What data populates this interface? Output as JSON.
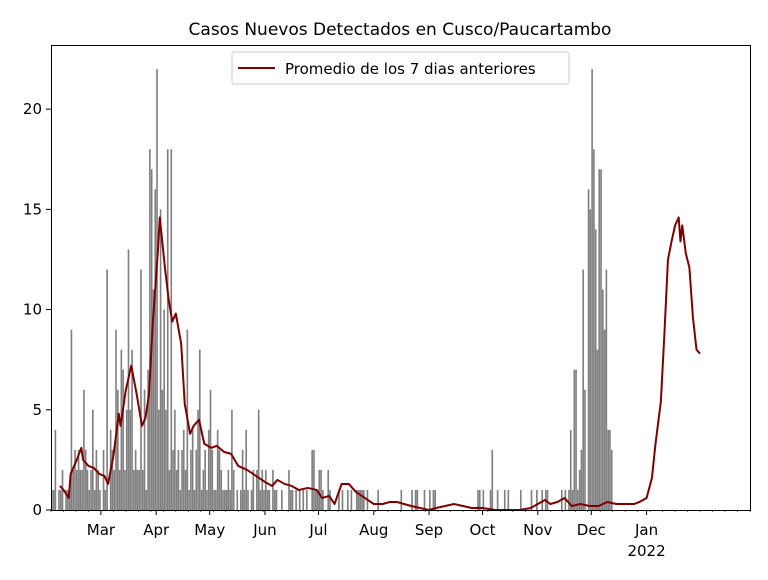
{
  "chart_data": {
    "type": "bar",
    "title": "Casos Nuevos Detectados en Cusco/Paucartambo",
    "xlabel": "",
    "ylabel": "",
    "ylim": [
      0,
      23.2
    ],
    "xlim": [
      "2021-02-01",
      "2022-02-28"
    ],
    "grid": false,
    "legend": {
      "placement": "top-center",
      "entries": [
        {
          "label": "Promedio de los 7 dias anteriores",
          "color": "#800000"
        }
      ]
    },
    "x_ticks": [
      {
        "date": "2021-03-01",
        "label": "Mar"
      },
      {
        "date": "2021-04-01",
        "label": "Apr"
      },
      {
        "date": "2021-05-01",
        "label": "May"
      },
      {
        "date": "2021-06-01",
        "label": "Jun"
      },
      {
        "date": "2021-07-01",
        "label": "Jul"
      },
      {
        "date": "2021-08-01",
        "label": "Aug"
      },
      {
        "date": "2021-09-01",
        "label": "Sep"
      },
      {
        "date": "2021-10-01",
        "label": "Oct"
      },
      {
        "date": "2021-11-01",
        "label": "Nov"
      },
      {
        "date": "2021-12-01",
        "label": "Dec"
      },
      {
        "date": "2022-01-01",
        "label": "Jan",
        "sublabel": "2022"
      }
    ],
    "y_ticks": [
      0,
      5,
      10,
      15,
      20
    ],
    "bar_color": "#808080",
    "line_color": "#800000",
    "daily_cases": {
      "start_date": "2021-02-01",
      "values": [
        1,
        1,
        4,
        0,
        1,
        1,
        2,
        0,
        1,
        1,
        1,
        9,
        2,
        3,
        2,
        3,
        2,
        2,
        6,
        3,
        2,
        1,
        2,
        5,
        1,
        3,
        2,
        1,
        0,
        3,
        1,
        12,
        0,
        4,
        3,
        2,
        9,
        6,
        2,
        8,
        7,
        2,
        5,
        13,
        5,
        8,
        2,
        3,
        2,
        2,
        12,
        2,
        6,
        1,
        7,
        18,
        17,
        11,
        16,
        22,
        5,
        15,
        6,
        10,
        5,
        18,
        2,
        18,
        3,
        5,
        2,
        3,
        1,
        3,
        4,
        2,
        9,
        1,
        3,
        4,
        1,
        3,
        5,
        8,
        1,
        2,
        3,
        1,
        4,
        6,
        3,
        1,
        1,
        4,
        3,
        2,
        1,
        1,
        1,
        2,
        1,
        5,
        2,
        0,
        1,
        0,
        1,
        3,
        1,
        4,
        1,
        0,
        1,
        2,
        0,
        2,
        5,
        1,
        2,
        1,
        2,
        1,
        1,
        0,
        2,
        1,
        1,
        0,
        0,
        1,
        0,
        0,
        0,
        2,
        1,
        1,
        0,
        1,
        0,
        1,
        0,
        1,
        0,
        1,
        0,
        0,
        3,
        3,
        1,
        1,
        2,
        2,
        1,
        0,
        0,
        2,
        1,
        0,
        0,
        0,
        0,
        1,
        0,
        1,
        0,
        0,
        1,
        0,
        1,
        0,
        0,
        1,
        1,
        1,
        1,
        1,
        0,
        1,
        0,
        0,
        0,
        0,
        0,
        1,
        0,
        0,
        0,
        0,
        0,
        0,
        0,
        0,
        0,
        0,
        0,
        0,
        1,
        0,
        0,
        0,
        0,
        0,
        1,
        0,
        1,
        1,
        0,
        0,
        0,
        1,
        0,
        0,
        1,
        0,
        1,
        1,
        0,
        0,
        0,
        0,
        0,
        0,
        0,
        0,
        0,
        0,
        0,
        0,
        0,
        0,
        0,
        0,
        0,
        0,
        0,
        0,
        0,
        0,
        0,
        1,
        1,
        0,
        1,
        0,
        0,
        0,
        1,
        3,
        0,
        0,
        1,
        0,
        0,
        0,
        1,
        0,
        1,
        0,
        0,
        0,
        0,
        0,
        0,
        1,
        0,
        0,
        0,
        0,
        0,
        1,
        0,
        0,
        1,
        0,
        0,
        1,
        0,
        1,
        1,
        0,
        0,
        0,
        0,
        0,
        0,
        0,
        1,
        0,
        1,
        0,
        1,
        4,
        1,
        7,
        7,
        1,
        2,
        3,
        12,
        6,
        0,
        16,
        15,
        22,
        18,
        14,
        8,
        17,
        17,
        11,
        9,
        12,
        4,
        4,
        3
      ]
    },
    "rolling_avg_7d": {
      "points": [
        [
          "2021-02-06",
          1.2
        ],
        [
          "2021-02-08",
          1.0
        ],
        [
          "2021-02-11",
          0.6
        ],
        [
          "2021-02-12",
          1.8
        ],
        [
          "2021-02-15",
          2.4
        ],
        [
          "2021-02-18",
          3.1
        ],
        [
          "2021-02-19",
          2.5
        ],
        [
          "2021-02-22",
          2.2
        ],
        [
          "2021-02-25",
          2.1
        ],
        [
          "2021-02-28",
          1.8
        ],
        [
          "2021-03-03",
          1.7
        ],
        [
          "2021-03-05",
          1.3
        ],
        [
          "2021-03-08",
          2.7
        ],
        [
          "2021-03-11",
          4.8
        ],
        [
          "2021-03-12",
          4.2
        ],
        [
          "2021-03-15",
          6.0
        ],
        [
          "2021-03-18",
          7.2
        ],
        [
          "2021-03-21",
          5.8
        ],
        [
          "2021-03-24",
          4.2
        ],
        [
          "2021-03-26",
          4.6
        ],
        [
          "2021-03-28",
          5.8
        ],
        [
          "2021-03-30",
          9.2
        ],
        [
          "2021-04-02",
          13.0
        ],
        [
          "2021-04-03",
          14.6
        ],
        [
          "2021-04-06",
          12.0
        ],
        [
          "2021-04-08",
          10.5
        ],
        [
          "2021-04-10",
          9.4
        ],
        [
          "2021-04-12",
          9.8
        ],
        [
          "2021-04-15",
          8.3
        ],
        [
          "2021-04-17",
          5.3
        ],
        [
          "2021-04-20",
          3.8
        ],
        [
          "2021-04-22",
          4.2
        ],
        [
          "2021-04-25",
          4.5
        ],
        [
          "2021-04-28",
          3.3
        ],
        [
          "2021-05-02",
          3.1
        ],
        [
          "2021-05-05",
          3.2
        ],
        [
          "2021-05-09",
          2.9
        ],
        [
          "2021-05-13",
          2.8
        ],
        [
          "2021-05-17",
          2.2
        ],
        [
          "2021-05-22",
          2.0
        ],
        [
          "2021-05-27",
          1.7
        ],
        [
          "2021-06-01",
          1.4
        ],
        [
          "2021-06-05",
          1.2
        ],
        [
          "2021-06-08",
          1.5
        ],
        [
          "2021-06-12",
          1.3
        ],
        [
          "2021-06-16",
          1.2
        ],
        [
          "2021-06-20",
          1.0
        ],
        [
          "2021-06-25",
          1.1
        ],
        [
          "2021-06-30",
          1.0
        ],
        [
          "2021-07-03",
          0.6
        ],
        [
          "2021-07-07",
          0.7
        ],
        [
          "2021-07-10",
          0.3
        ],
        [
          "2021-07-14",
          1.3
        ],
        [
          "2021-07-18",
          1.3
        ],
        [
          "2021-07-22",
          0.9
        ],
        [
          "2021-07-27",
          0.6
        ],
        [
          "2021-08-01",
          0.3
        ],
        [
          "2021-08-06",
          0.3
        ],
        [
          "2021-08-10",
          0.4
        ],
        [
          "2021-08-14",
          0.4
        ],
        [
          "2021-08-18",
          0.3
        ],
        [
          "2021-08-22",
          0.2
        ],
        [
          "2021-08-27",
          0.1
        ],
        [
          "2021-09-01",
          0.0
        ],
        [
          "2021-09-05",
          0.1
        ],
        [
          "2021-09-10",
          0.2
        ],
        [
          "2021-09-15",
          0.3
        ],
        [
          "2021-09-20",
          0.2
        ],
        [
          "2021-09-25",
          0.1
        ],
        [
          "2021-10-01",
          0.1
        ],
        [
          "2021-10-08",
          0.0
        ],
        [
          "2021-10-15",
          0.0
        ],
        [
          "2021-10-22",
          0.0
        ],
        [
          "2021-10-28",
          0.1
        ],
        [
          "2021-11-01",
          0.3
        ],
        [
          "2021-11-05",
          0.5
        ],
        [
          "2021-11-08",
          0.3
        ],
        [
          "2021-11-12",
          0.4
        ],
        [
          "2021-11-16",
          0.6
        ],
        [
          "2021-11-20",
          0.2
        ],
        [
          "2021-11-25",
          0.3
        ],
        [
          "2021-11-30",
          0.2
        ],
        [
          "2021-12-05",
          0.2
        ],
        [
          "2021-12-10",
          0.4
        ],
        [
          "2021-12-15",
          0.3
        ],
        [
          "2021-12-20",
          0.3
        ],
        [
          "2021-12-25",
          0.3
        ],
        [
          "2021-12-28",
          0.4
        ],
        [
          "2022-01-01",
          0.6
        ],
        [
          "2022-01-04",
          1.6
        ],
        [
          "2022-01-06",
          3.3
        ],
        [
          "2022-01-09",
          5.4
        ],
        [
          "2022-01-11",
          8.8
        ],
        [
          "2022-01-13",
          12.5
        ],
        [
          "2022-01-15",
          13.4
        ],
        [
          "2022-01-17",
          14.2
        ],
        [
          "2022-01-19",
          14.6
        ],
        [
          "2022-01-20",
          13.4
        ],
        [
          "2022-01-21",
          14.2
        ],
        [
          "2022-01-23",
          12.8
        ],
        [
          "2022-01-25",
          12.1
        ],
        [
          "2022-01-27",
          9.6
        ],
        [
          "2022-01-29",
          8.0
        ],
        [
          "2022-01-31",
          7.8
        ]
      ]
    }
  }
}
